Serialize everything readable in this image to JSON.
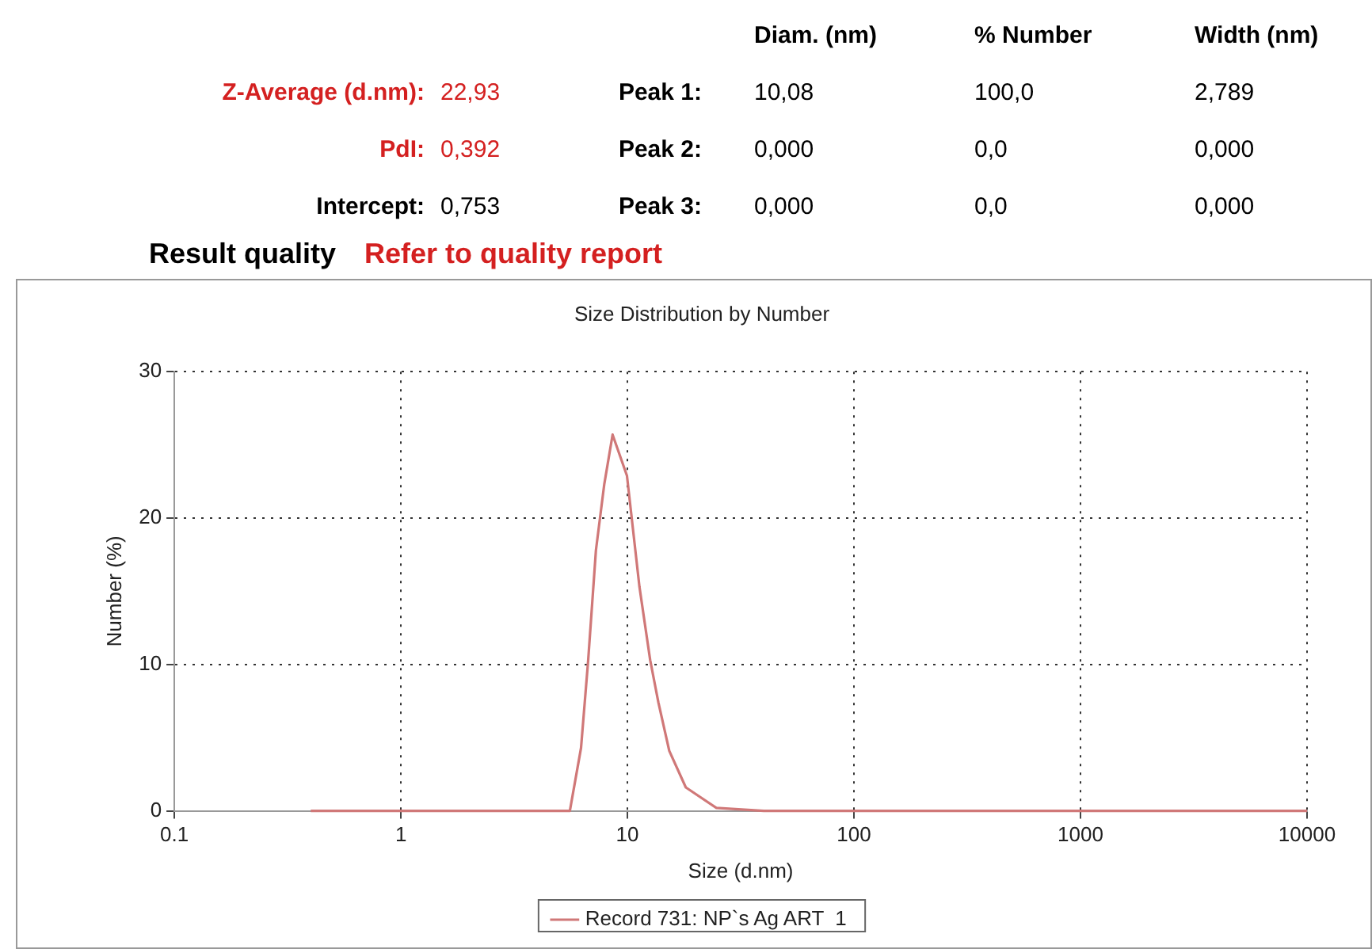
{
  "chart_data": {
    "type": "line",
    "title": "Size Distribution by Number",
    "xlabel": "Size (d.nm)",
    "ylabel": "Number (%)",
    "annotations": [
      "Diam. (nm)",
      "% Number",
      "Width (nm)",
      "Z-Average (d.nm):",
      "22,93",
      "Peak 1:",
      "10,08",
      "100,0",
      "2,789",
      "PdI:",
      "0,392",
      "Peak 2:",
      "0,000",
      "0,0",
      "0,000",
      "Intercept:",
      "0,753",
      "Peak 3:",
      "0,000",
      "0,0",
      "0,000",
      "Result quality",
      "Refer to quality report"
    ],
    "log": "x",
    "xlim": [
      0.1,
      10000
    ],
    "xticks": [
      0.1,
      1,
      10,
      100,
      1000,
      10000
    ],
    "ylim": [
      0,
      30
    ],
    "yticks": [
      0,
      10,
      20,
      30
    ],
    "grid": true,
    "legend": "bottom",
    "marker": "none",
    "line_style": "solid",
    "series": [
      {
        "name": "Record 731: NP`s Ag ART  1",
        "color": "#d07878",
        "x": [
          0.4,
          1,
          3,
          5.57,
          6.24,
          6.71,
          7.26,
          7.9,
          8.6,
          9.95,
          11.3,
          12.6,
          13.7,
          15.3,
          18.1,
          24.7,
          40,
          100,
          1000,
          10000
        ],
        "values": [
          0,
          0,
          0,
          0,
          4.3,
          10.3,
          17.8,
          22.3,
          25.7,
          22.9,
          15.3,
          10.3,
          7.4,
          4.1,
          1.6,
          0.2,
          0,
          0,
          0,
          0
        ]
      }
    ]
  }
}
